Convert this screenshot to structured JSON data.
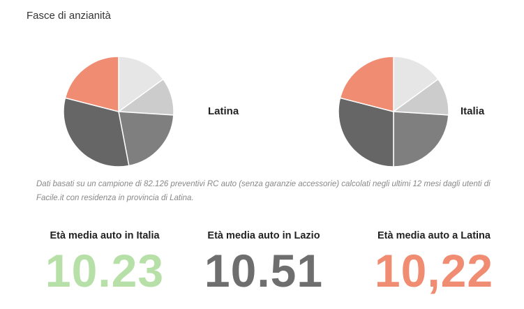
{
  "section": {
    "title": "Fasce di anzianità"
  },
  "chart_data": [
    {
      "type": "pie",
      "label": "Latina",
      "slices": [
        {
          "value": 15,
          "color": "#e6e6e6"
        },
        {
          "value": 11,
          "color": "#cccccc"
        },
        {
          "value": 21,
          "color": "#7f7f7f"
        },
        {
          "value": 32,
          "color": "#666666"
        },
        {
          "value": 21,
          "color": "#f08c71"
        }
      ]
    },
    {
      "type": "pie",
      "label": "Italia",
      "slices": [
        {
          "value": 15,
          "color": "#e6e6e6"
        },
        {
          "value": 11,
          "color": "#cccccc"
        },
        {
          "value": 24,
          "color": "#7f7f7f"
        },
        {
          "value": 29,
          "color": "#666666"
        },
        {
          "value": 21,
          "color": "#f08c71"
        }
      ]
    }
  ],
  "note": "Dati basati su un campione di 82.126 preventivi RC auto (senza garanzie accessorie) calcolati negli ultimi 12 mesi dagli utenti di Facile.it con residenza in provincia di Latina.",
  "stats": [
    {
      "label": "Età media auto in Italia",
      "value": "10.23",
      "color": "#b6e0a8"
    },
    {
      "label": "Età media auto in Lazio",
      "value": "10.51",
      "color": "#6e6e6e"
    },
    {
      "label": "Età media auto a Latina",
      "value": "10,22",
      "color": "#f08c71"
    }
  ]
}
